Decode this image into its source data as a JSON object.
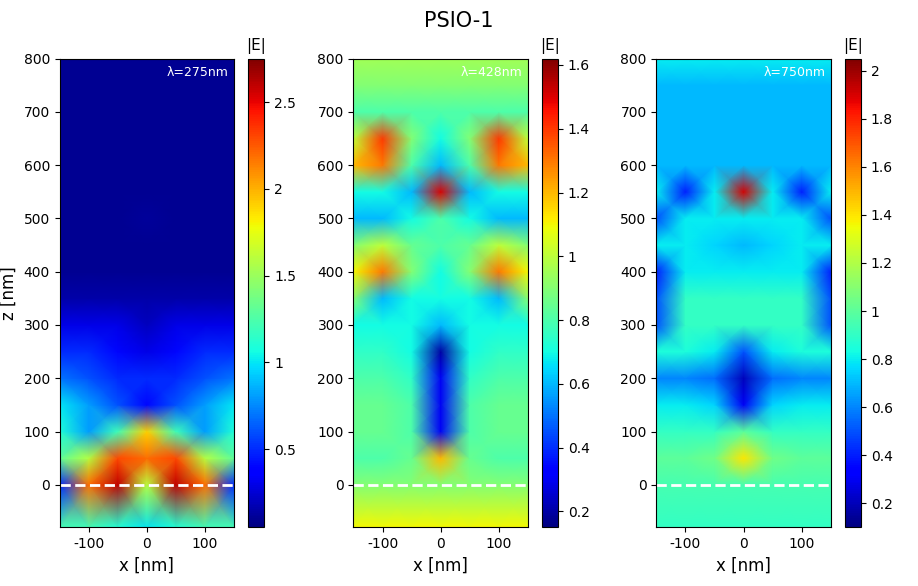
{
  "title": "PSIO-1",
  "chart_data": [
    {
      "type": "heatmap",
      "annotation": "λ=275nm",
      "xlabel": "x [nm]",
      "ylabel": "z [nm]",
      "xlim": [
        -150,
        150
      ],
      "xticks": [
        -100,
        0,
        100
      ],
      "ylim": [
        -80,
        800
      ],
      "yticks": [
        0,
        100,
        200,
        300,
        400,
        500,
        600,
        700,
        800
      ],
      "color": "jet",
      "reference_line": {
        "z": 0,
        "color": "white",
        "line_style": "dashed"
      },
      "colorbar": {
        "label": "|E|",
        "range": [
          0.05,
          2.75
        ],
        "ticks": [
          0.5,
          1,
          1.5,
          2,
          2.5
        ]
      },
      "cells": {
        "x": [
          -150,
          -100,
          -50,
          0,
          50,
          100,
          150
        ],
        "z": [
          -80,
          0,
          50,
          100,
          150,
          200,
          250,
          300,
          350,
          400,
          450,
          500,
          550,
          600,
          650,
          700,
          750,
          800
        ],
        "values": [
          [
            1.2,
            1.2,
            1.1,
            1.0,
            1.1,
            1.2,
            1.2
          ],
          [
            0.5,
            2.2,
            2.6,
            1.6,
            2.6,
            2.2,
            0.5
          ],
          [
            1.3,
            1.6,
            2.3,
            2.2,
            2.3,
            1.6,
            1.3
          ],
          [
            1.1,
            0.8,
            1.2,
            1.9,
            1.2,
            0.8,
            1.1
          ],
          [
            1.0,
            0.8,
            0.6,
            0.4,
            0.6,
            0.8,
            1.0
          ],
          [
            0.7,
            0.6,
            0.5,
            0.5,
            0.5,
            0.6,
            0.7
          ],
          [
            0.5,
            0.5,
            0.4,
            0.3,
            0.4,
            0.5,
            0.5
          ],
          [
            0.3,
            0.3,
            0.3,
            0.2,
            0.3,
            0.3,
            0.3
          ],
          [
            0.15,
            0.15,
            0.15,
            0.15,
            0.15,
            0.15,
            0.15
          ],
          [
            0.1,
            0.1,
            0.1,
            0.1,
            0.1,
            0.1,
            0.1
          ],
          [
            0.1,
            0.1,
            0.1,
            0.1,
            0.1,
            0.1,
            0.1
          ],
          [
            0.1,
            0.1,
            0.1,
            0.12,
            0.1,
            0.1,
            0.1
          ],
          [
            0.1,
            0.1,
            0.1,
            0.1,
            0.1,
            0.1,
            0.1
          ],
          [
            0.1,
            0.1,
            0.1,
            0.1,
            0.1,
            0.1,
            0.1
          ],
          [
            0.1,
            0.1,
            0.1,
            0.1,
            0.1,
            0.1,
            0.1
          ],
          [
            0.1,
            0.1,
            0.1,
            0.1,
            0.1,
            0.1,
            0.1
          ],
          [
            0.1,
            0.1,
            0.1,
            0.1,
            0.1,
            0.1,
            0.1
          ],
          [
            0.1,
            0.1,
            0.1,
            0.1,
            0.1,
            0.1,
            0.1
          ]
        ]
      }
    },
    {
      "type": "heatmap",
      "annotation": "λ=428nm",
      "xlabel": "x [nm]",
      "xlim": [
        -150,
        150
      ],
      "xticks": [
        -100,
        0,
        100
      ],
      "ylim": [
        -80,
        800
      ],
      "yticks": [
        0,
        100,
        200,
        300,
        400,
        500,
        600,
        700,
        800
      ],
      "color": "jet",
      "reference_line": {
        "z": 0,
        "color": "white",
        "line_style": "dashed"
      },
      "colorbar": {
        "label": "|E|",
        "range": [
          0.15,
          1.62
        ],
        "ticks": [
          0.2,
          0.4,
          0.6,
          0.8,
          1,
          1.2,
          1.4,
          1.6
        ]
      },
      "cells": {
        "x": [
          -150,
          -100,
          -50,
          0,
          50,
          100,
          150
        ],
        "z": [
          -80,
          0,
          50,
          100,
          150,
          200,
          250,
          300,
          350,
          400,
          450,
          500,
          550,
          600,
          650,
          700,
          750,
          800
        ],
        "values": [
          [
            1.1,
            1.1,
            1.1,
            1.1,
            1.1,
            1.1,
            1.1
          ],
          [
            0.9,
            0.9,
            0.9,
            0.9,
            0.9,
            0.9,
            0.9
          ],
          [
            0.8,
            0.8,
            0.85,
            1.2,
            0.85,
            0.8,
            0.8
          ],
          [
            0.85,
            0.85,
            0.8,
            0.3,
            0.8,
            0.85,
            0.85
          ],
          [
            0.85,
            0.85,
            0.8,
            0.3,
            0.8,
            0.85,
            0.85
          ],
          [
            0.8,
            0.8,
            0.75,
            0.3,
            0.75,
            0.8,
            0.8
          ],
          [
            0.75,
            0.75,
            0.7,
            0.2,
            0.7,
            0.75,
            0.75
          ],
          [
            0.7,
            0.7,
            0.7,
            0.6,
            0.7,
            0.7,
            0.7
          ],
          [
            0.9,
            0.6,
            0.7,
            0.7,
            0.7,
            0.6,
            0.9
          ],
          [
            1.1,
            1.3,
            0.9,
            0.7,
            0.9,
            1.3,
            1.1
          ],
          [
            0.9,
            1.0,
            0.85,
            0.8,
            0.85,
            1.0,
            0.9
          ],
          [
            0.6,
            0.6,
            0.7,
            0.8,
            0.7,
            0.6,
            0.6
          ],
          [
            0.7,
            0.7,
            0.6,
            1.5,
            0.6,
            0.7,
            0.7
          ],
          [
            1.2,
            1.3,
            0.8,
            0.6,
            0.8,
            1.3,
            1.2
          ],
          [
            1.0,
            1.4,
            0.9,
            0.7,
            0.9,
            1.4,
            1.0
          ],
          [
            0.8,
            0.8,
            0.8,
            0.8,
            0.8,
            0.8,
            0.8
          ],
          [
            0.9,
            0.9,
            0.9,
            0.9,
            0.9,
            0.9,
            0.9
          ],
          [
            0.95,
            0.95,
            0.95,
            0.95,
            0.95,
            0.95,
            0.95
          ]
        ]
      }
    },
    {
      "type": "heatmap",
      "annotation": "λ=750nm",
      "xlabel": "x [nm]",
      "xlim": [
        -150,
        150
      ],
      "xticks": [
        -100,
        0,
        100
      ],
      "ylim": [
        -80,
        800
      ],
      "yticks": [
        0,
        100,
        200,
        300,
        400,
        500,
        600,
        700,
        800
      ],
      "color": "jet",
      "reference_line": {
        "z": 0,
        "color": "white",
        "line_style": "dashed"
      },
      "colorbar": {
        "label": "|E|",
        "range": [
          0.1,
          2.05
        ],
        "ticks": [
          0.2,
          0.4,
          0.6,
          0.8,
          1,
          1.2,
          1.4,
          1.6,
          1.8,
          2
        ]
      },
      "cells": {
        "x": [
          -150,
          -100,
          -50,
          0,
          50,
          100,
          150
        ],
        "z": [
          -80,
          0,
          50,
          100,
          150,
          200,
          250,
          300,
          350,
          400,
          450,
          500,
          550,
          600,
          650,
          700,
          750,
          800
        ],
        "values": [
          [
            0.9,
            0.9,
            0.9,
            0.9,
            0.9,
            0.9,
            0.9
          ],
          [
            0.95,
            0.95,
            0.95,
            0.95,
            0.95,
            0.95,
            0.95
          ],
          [
            1.0,
            1.0,
            1.05,
            1.4,
            1.05,
            1.0,
            1.0
          ],
          [
            0.9,
            0.9,
            0.9,
            1.0,
            0.9,
            0.9,
            0.9
          ],
          [
            0.8,
            0.8,
            0.75,
            0.3,
            0.75,
            0.8,
            0.8
          ],
          [
            0.6,
            0.6,
            0.55,
            0.2,
            0.55,
            0.6,
            0.6
          ],
          [
            0.85,
            0.85,
            0.8,
            0.5,
            0.8,
            0.85,
            0.85
          ],
          [
            0.5,
            0.9,
            0.9,
            0.9,
            0.9,
            0.9,
            0.5
          ],
          [
            0.5,
            0.9,
            0.9,
            0.9,
            0.9,
            0.9,
            0.5
          ],
          [
            0.4,
            0.8,
            0.8,
            0.8,
            0.8,
            0.8,
            0.4
          ],
          [
            0.8,
            0.8,
            0.75,
            0.7,
            0.75,
            0.8,
            0.8
          ],
          [
            0.5,
            0.8,
            0.8,
            0.8,
            0.8,
            0.8,
            0.5
          ],
          [
            0.8,
            0.4,
            0.8,
            1.9,
            0.8,
            0.4,
            0.8
          ],
          [
            0.7,
            0.7,
            0.7,
            0.7,
            0.7,
            0.7,
            0.7
          ],
          [
            0.7,
            0.7,
            0.7,
            0.7,
            0.7,
            0.7,
            0.7
          ],
          [
            0.7,
            0.7,
            0.7,
            0.7,
            0.7,
            0.7,
            0.7
          ],
          [
            0.7,
            0.7,
            0.7,
            0.7,
            0.7,
            0.7,
            0.7
          ],
          [
            0.8,
            0.8,
            0.8,
            0.8,
            0.8,
            0.8,
            0.8
          ]
        ]
      }
    }
  ]
}
